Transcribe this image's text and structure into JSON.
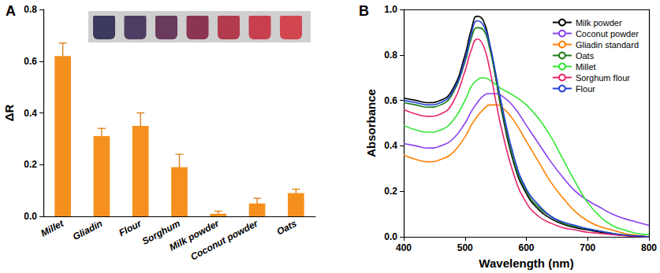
{
  "chart_data": [
    {
      "type": "bar",
      "title": "A",
      "y_label": "ΔR",
      "categories": [
        "Millet",
        "Gliadin",
        "Flour",
        "Sorghum",
        "Milk powder",
        "Coconut powder",
        "Oats"
      ],
      "values": [
        0.62,
        0.31,
        0.35,
        0.19,
        0.01,
        0.05,
        0.09
      ],
      "errors": [
        0.05,
        0.03,
        0.05,
        0.05,
        0.01,
        0.02,
        0.015
      ],
      "color": "#f5901e",
      "ylim": [
        0,
        0.8
      ],
      "yticks": [
        {
          "value": 0,
          "label": "0.0"
        },
        0.2,
        0.4,
        0.6,
        0.8
      ],
      "grid": false
    },
    {
      "type": "line",
      "title": "B",
      "x_label": "Wavelength (nm)",
      "y_label": "Absorbance",
      "x": [
        400,
        420,
        440,
        460,
        480,
        500,
        510,
        520,
        530,
        540,
        550,
        560,
        580,
        600,
        620,
        640,
        660,
        680,
        700,
        720,
        740,
        760,
        780,
        800
      ],
      "series": [
        {
          "name": "Milk powder",
          "color": "#000000",
          "values": [
            0.61,
            0.6,
            0.59,
            0.6,
            0.65,
            0.8,
            0.91,
            0.97,
            0.95,
            0.85,
            0.7,
            0.55,
            0.32,
            0.19,
            0.12,
            0.08,
            0.055,
            0.04,
            0.03,
            0.02,
            0.012,
            0.006,
            0.003,
            0.0
          ]
        },
        {
          "name": "Coconut powder",
          "color": "#8a3ff0",
          "values": [
            0.41,
            0.4,
            0.39,
            0.4,
            0.43,
            0.5,
            0.55,
            0.59,
            0.62,
            0.63,
            0.63,
            0.62,
            0.57,
            0.49,
            0.41,
            0.33,
            0.26,
            0.2,
            0.16,
            0.13,
            0.1,
            0.08,
            0.065,
            0.05
          ]
        },
        {
          "name": "Gliadin standard",
          "color": "#ff8000",
          "values": [
            0.36,
            0.34,
            0.33,
            0.34,
            0.37,
            0.44,
            0.49,
            0.53,
            0.56,
            0.58,
            0.58,
            0.57,
            0.51,
            0.42,
            0.33,
            0.24,
            0.17,
            0.11,
            0.07,
            0.045,
            0.03,
            0.015,
            0.007,
            0.0
          ]
        },
        {
          "name": "Oats",
          "color": "#1a7a1a",
          "values": [
            0.59,
            0.58,
            0.57,
            0.58,
            0.63,
            0.77,
            0.87,
            0.92,
            0.91,
            0.83,
            0.7,
            0.56,
            0.33,
            0.2,
            0.13,
            0.09,
            0.06,
            0.045,
            0.035,
            0.025,
            0.015,
            0.008,
            0.004,
            0.0
          ]
        },
        {
          "name": "Millet",
          "color": "#33e633",
          "values": [
            0.49,
            0.47,
            0.46,
            0.47,
            0.51,
            0.6,
            0.66,
            0.69,
            0.7,
            0.69,
            0.67,
            0.65,
            0.62,
            0.58,
            0.52,
            0.44,
            0.34,
            0.24,
            0.15,
            0.09,
            0.05,
            0.03,
            0.015,
            0.01
          ]
        },
        {
          "name": "Sorghum flour",
          "color": "#e8256a",
          "values": [
            0.56,
            0.54,
            0.53,
            0.54,
            0.59,
            0.73,
            0.82,
            0.87,
            0.84,
            0.74,
            0.6,
            0.47,
            0.27,
            0.15,
            0.09,
            0.06,
            0.04,
            0.03,
            0.02,
            0.015,
            0.01,
            0.005,
            0.002,
            0.0
          ]
        },
        {
          "name": "Flour",
          "color": "#1f3fd6",
          "values": [
            0.6,
            0.59,
            0.58,
            0.59,
            0.64,
            0.78,
            0.89,
            0.95,
            0.93,
            0.85,
            0.72,
            0.58,
            0.35,
            0.21,
            0.14,
            0.09,
            0.065,
            0.05,
            0.035,
            0.025,
            0.015,
            0.008,
            0.004,
            0.0
          ]
        }
      ],
      "xlim": [
        400,
        800
      ],
      "xticks": [
        400,
        500,
        600,
        700,
        800
      ],
      "ylim": [
        0,
        1.0
      ],
      "yticks": [
        {
          "value": 0,
          "label": "0.0"
        },
        0.2,
        0.4,
        0.6,
        0.8,
        {
          "value": 1.0,
          "label": "1.0"
        }
      ],
      "legend": "upper right",
      "grid": false
    }
  ]
}
